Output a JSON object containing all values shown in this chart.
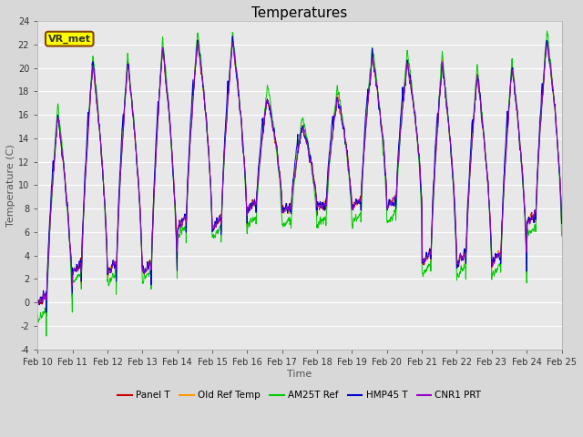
{
  "title": "Temperatures",
  "xlabel": "Time",
  "ylabel": "Temperature (C)",
  "ylim": [
    -4,
    24
  ],
  "yticks": [
    -4,
    -2,
    0,
    2,
    4,
    6,
    8,
    10,
    12,
    14,
    16,
    18,
    20,
    22,
    24
  ],
  "n_days": 15,
  "start_day": 10,
  "pts_per_day": 144,
  "day_mins": [
    -1.0,
    1.5,
    1.5,
    1.5,
    5.5,
    5.5,
    7.5,
    7.5,
    7.5,
    7.5,
    7.5,
    2.5,
    2.5,
    2.5,
    6.0
  ],
  "day_maxs": [
    16.0,
    20.5,
    20.5,
    22.0,
    22.5,
    22.5,
    17.5,
    15.0,
    17.5,
    21.0,
    20.5,
    20.5,
    19.5,
    20.0,
    22.5
  ],
  "am25t_extra_amp": [
    2.5,
    1.5,
    1.5,
    1.5,
    1.5,
    1.5,
    2.5,
    2.5,
    2.5,
    2.5,
    2.5,
    2.0,
    2.0,
    2.0,
    2.0
  ],
  "hmp45_phase_shift": 0.04,
  "background_color": "#d8d8d8",
  "plot_bg_color": "#e8e8e8",
  "series": [
    {
      "label": "Panel T",
      "color": "#cc0000"
    },
    {
      "label": "Old Ref Temp",
      "color": "#ff9900"
    },
    {
      "label": "AM25T Ref",
      "color": "#00cc00"
    },
    {
      "label": "HMP45 T",
      "color": "#0000cc"
    },
    {
      "label": "CNR1 PRT",
      "color": "#9900cc"
    }
  ],
  "annotation": {
    "text": "VR_met",
    "fontsize": 8,
    "bg": "#ffff00",
    "border_color": "#884400"
  },
  "title_fontsize": 11,
  "axis_fontsize": 8,
  "tick_fontsize": 7,
  "grid_color": "#ffffff",
  "linewidth": 0.7
}
